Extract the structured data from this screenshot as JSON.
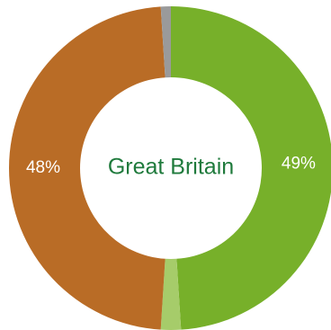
{
  "chart_data": {
    "type": "pie",
    "variant": "donut",
    "center_label": "Great Britain",
    "slices": [
      {
        "value": 49,
        "label": "49%",
        "color": "#77b02a"
      },
      {
        "value": 2,
        "label": "",
        "color": "#a6cc6a"
      },
      {
        "value": 48,
        "label": "48%",
        "color": "#b96c26"
      },
      {
        "value": 1,
        "label": "",
        "color": "#9a9a9a"
      }
    ],
    "start": "top",
    "direction": "clockwise",
    "legend": "none"
  },
  "colors": {
    "center_text": "#1f7a3c",
    "background": "#ffffff",
    "slice_label_text": "#ffffff"
  }
}
